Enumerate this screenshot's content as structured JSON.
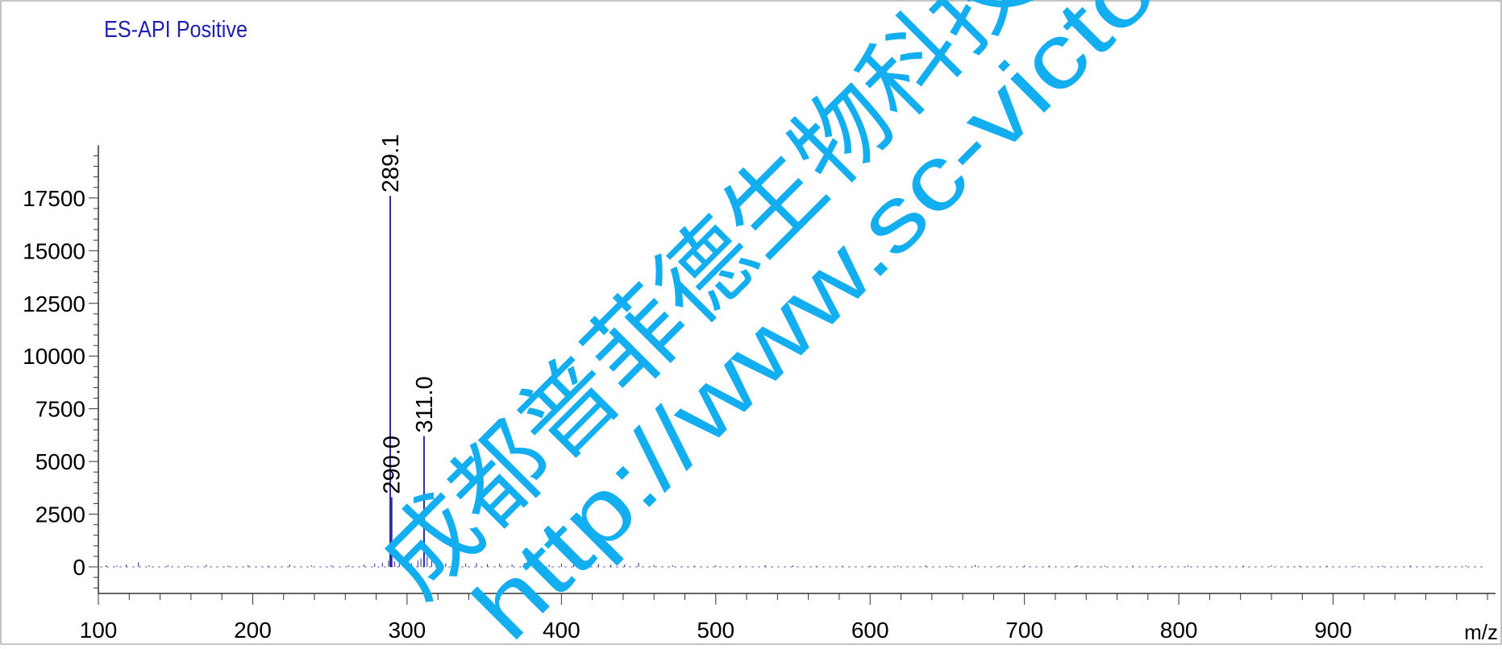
{
  "chart_data": {
    "type": "bar",
    "title": "ES-API Positive",
    "xlabel": "m/z",
    "ylabel": "",
    "xlim": [
      100,
      1000
    ],
    "ylim": [
      -1200,
      20000
    ],
    "xticks": [
      100,
      200,
      300,
      400,
      500,
      600,
      700,
      800,
      900
    ],
    "yticks": [
      0,
      2500,
      5000,
      7500,
      10000,
      12500,
      15000,
      17500
    ],
    "grid": false,
    "legend": "none",
    "peaks": [
      {
        "x": 289.1,
        "y": 17600,
        "label": "289.1"
      },
      {
        "x": 290.0,
        "y": 3300,
        "label": "290.0"
      },
      {
        "x": 311.0,
        "y": 6200,
        "label": "311.0"
      }
    ],
    "noise": [
      {
        "x": 105,
        "y": 80
      },
      {
        "x": 112,
        "y": 60
      },
      {
        "x": 118,
        "y": 110
      },
      {
        "x": 126,
        "y": 220
      },
      {
        "x": 133,
        "y": 70
      },
      {
        "x": 145,
        "y": 90
      },
      {
        "x": 158,
        "y": 60
      },
      {
        "x": 170,
        "y": 100
      },
      {
        "x": 184,
        "y": 70
      },
      {
        "x": 197,
        "y": 80
      },
      {
        "x": 210,
        "y": 60
      },
      {
        "x": 224,
        "y": 110
      },
      {
        "x": 238,
        "y": 70
      },
      {
        "x": 251,
        "y": 90
      },
      {
        "x": 262,
        "y": 80
      },
      {
        "x": 272,
        "y": 120
      },
      {
        "x": 279,
        "y": 150
      },
      {
        "x": 284,
        "y": 200
      },
      {
        "x": 288,
        "y": 300
      },
      {
        "x": 292,
        "y": 260
      },
      {
        "x": 295,
        "y": 180
      },
      {
        "x": 299,
        "y": 220
      },
      {
        "x": 303,
        "y": 160
      },
      {
        "x": 307,
        "y": 300
      },
      {
        "x": 309,
        "y": 400
      },
      {
        "x": 313,
        "y": 500
      },
      {
        "x": 316,
        "y": 300
      },
      {
        "x": 320,
        "y": 220
      },
      {
        "x": 325,
        "y": 160
      },
      {
        "x": 331,
        "y": 200
      },
      {
        "x": 338,
        "y": 150
      },
      {
        "x": 345,
        "y": 180
      },
      {
        "x": 352,
        "y": 130
      },
      {
        "x": 360,
        "y": 150
      },
      {
        "x": 368,
        "y": 120
      },
      {
        "x": 376,
        "y": 180
      },
      {
        "x": 384,
        "y": 130
      },
      {
        "x": 392,
        "y": 110
      },
      {
        "x": 400,
        "y": 150
      },
      {
        "x": 408,
        "y": 120
      },
      {
        "x": 416,
        "y": 100
      },
      {
        "x": 424,
        "y": 140
      },
      {
        "x": 432,
        "y": 100
      },
      {
        "x": 441,
        "y": 120
      },
      {
        "x": 450,
        "y": 200
      },
      {
        "x": 460,
        "y": 90
      },
      {
        "x": 472,
        "y": 80
      },
      {
        "x": 486,
        "y": 60
      },
      {
        "x": 500,
        "y": 70
      },
      {
        "x": 516,
        "y": 60
      },
      {
        "x": 532,
        "y": 80
      },
      {
        "x": 550,
        "y": 60
      },
      {
        "x": 565,
        "y": 50
      },
      {
        "x": 582,
        "y": 60
      },
      {
        "x": 600,
        "y": 70
      },
      {
        "x": 618,
        "y": 60
      },
      {
        "x": 636,
        "y": 80
      },
      {
        "x": 652,
        "y": 60
      },
      {
        "x": 668,
        "y": 90
      },
      {
        "x": 684,
        "y": 60
      },
      {
        "x": 700,
        "y": 70
      },
      {
        "x": 716,
        "y": 60
      },
      {
        "x": 734,
        "y": 80
      },
      {
        "x": 752,
        "y": 60
      },
      {
        "x": 770,
        "y": 50
      },
      {
        "x": 788,
        "y": 60
      },
      {
        "x": 806,
        "y": 70
      },
      {
        "x": 824,
        "y": 50
      },
      {
        "x": 842,
        "y": 60
      },
      {
        "x": 860,
        "y": 70
      },
      {
        "x": 878,
        "y": 50
      },
      {
        "x": 896,
        "y": 60
      },
      {
        "x": 914,
        "y": 50
      },
      {
        "x": 932,
        "y": 60
      },
      {
        "x": 950,
        "y": 70
      },
      {
        "x": 968,
        "y": 50
      },
      {
        "x": 986,
        "y": 60
      }
    ],
    "colors": {
      "spectrum": "#2c2c9c",
      "title": "#1f1fb4",
      "axis": "#333333",
      "text": "#000000"
    }
  },
  "watermark": {
    "line1": "成都普菲德生物科技",
    "line2": "http://www.sc-victo",
    "color": "#13aef0"
  }
}
